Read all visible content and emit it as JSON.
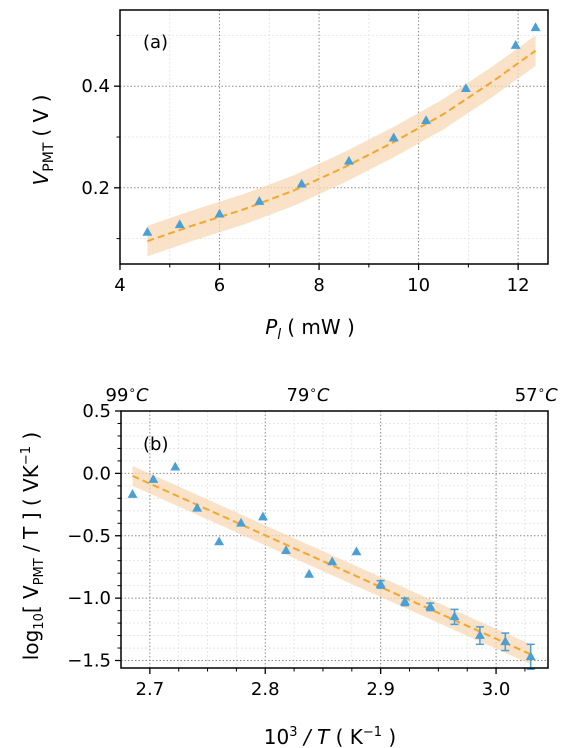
{
  "chart_data": [
    {
      "type": "scatter",
      "panel_label": "(a)",
      "xlabel": {
        "main": "P",
        "sub": "l",
        "unit": "( mW )"
      },
      "ylabel": {
        "main": "V",
        "sub": "PMT",
        "unit": "( V )"
      },
      "xlim": [
        4,
        12.6
      ],
      "ylim": [
        0.05,
        0.55
      ],
      "xticks": [
        4,
        6,
        8,
        10,
        12
      ],
      "xtick_labels": [
        "4",
        "6",
        "8",
        "10",
        "12"
      ],
      "yticks": [
        0.2,
        0.4
      ],
      "ytick_labels": [
        "0.2",
        "0.4"
      ],
      "xminor": [
        5,
        7,
        9,
        11
      ],
      "yminor": [
        0.1,
        0.3,
        0.5
      ],
      "grid": true,
      "marker_color": "#4a9fd4",
      "fit_color": "#f0a830",
      "band_color": "#f7d8b4",
      "series": [
        {
          "x": [
            4.55,
            5.2,
            6.0,
            6.8,
            7.65,
            8.6,
            9.5,
            10.15,
            10.95,
            11.95,
            12.35
          ],
          "y": [
            0.112,
            0.127,
            0.148,
            0.173,
            0.207,
            0.252,
            0.298,
            0.332,
            0.395,
            0.48,
            0.515
          ]
        }
      ],
      "fit": {
        "x": [
          4.55,
          5.5,
          6.5,
          7.5,
          8.5,
          9.5,
          10.5,
          11.5,
          12.35
        ],
        "y": [
          0.095,
          0.127,
          0.158,
          0.195,
          0.24,
          0.29,
          0.345,
          0.41,
          0.47
        ]
      },
      "band_halfwidth": 0.03
    },
    {
      "type": "scatter",
      "panel_label": "(b)",
      "xlabel": {
        "base": "10",
        "exp": "3",
        "mid": " / T ",
        "unit_pre": "( K",
        "unit_exp": "−1",
        "unit_post": " )"
      },
      "ylabel": {
        "pre": "log",
        "sub": "10",
        "mid": "[ V",
        "sub2": "PMT",
        "post": " / T ] ( VK",
        "exp": "−1",
        "end": " )"
      },
      "top_axis": {
        "labels": [
          "99",
          "79",
          "57"
        ],
        "unit": "C",
        "positions": [
          2.685,
          2.837,
          3.03
        ]
      },
      "xlim": [
        2.675,
        3.045
      ],
      "ylim": [
        -1.56,
        0.5
      ],
      "xticks": [
        2.7,
        2.8,
        2.9,
        3.0
      ],
      "xtick_labels": [
        "2.7",
        "2.8",
        "2.9",
        "3.0"
      ],
      "yticks": [
        -1.5,
        -1.0,
        -0.5,
        0.0,
        0.5
      ],
      "ytick_labels": [
        "−1.5",
        "−1.0",
        "−0.5",
        "0.0",
        "0.5"
      ],
      "xminor": [
        2.725,
        2.75,
        2.775,
        2.825,
        2.85,
        2.875,
        2.925,
        2.95,
        2.975,
        3.025
      ],
      "yminor": [
        -1.4,
        -1.3,
        -1.2,
        -1.1,
        -0.9,
        -0.8,
        -0.7,
        -0.6,
        -0.4,
        -0.3,
        -0.2,
        -0.1,
        0.1,
        0.2,
        0.3,
        0.4
      ],
      "grid": true,
      "marker_color": "#4a9fd4",
      "fit_color": "#f0a830",
      "band_color": "#f7d8b4",
      "series": [
        {
          "x": [
            2.685,
            2.703,
            2.722,
            2.741,
            2.76,
            2.779,
            2.798,
            2.818,
            2.838,
            2.858,
            2.879,
            2.9,
            2.921,
            2.943,
            2.964,
            2.986,
            3.008,
            3.03
          ],
          "y": [
            -0.17,
            -0.05,
            0.05,
            -0.28,
            -0.55,
            -0.4,
            -0.35,
            -0.62,
            -0.81,
            -0.71,
            -0.63,
            -0.89,
            -1.03,
            -1.07,
            -1.15,
            -1.3,
            -1.35,
            -1.47
          ],
          "err": [
            0.0,
            0.0,
            0.0,
            0.0,
            0.0,
            0.0,
            0.0,
            0.0,
            0.0,
            0.0,
            0.0,
            0.03,
            0.03,
            0.03,
            0.06,
            0.07,
            0.07,
            0.1
          ]
        }
      ],
      "fit": {
        "x": [
          2.685,
          3.03
        ],
        "y": [
          -0.02,
          -1.45
        ]
      },
      "band_halfwidth": 0.08
    }
  ]
}
